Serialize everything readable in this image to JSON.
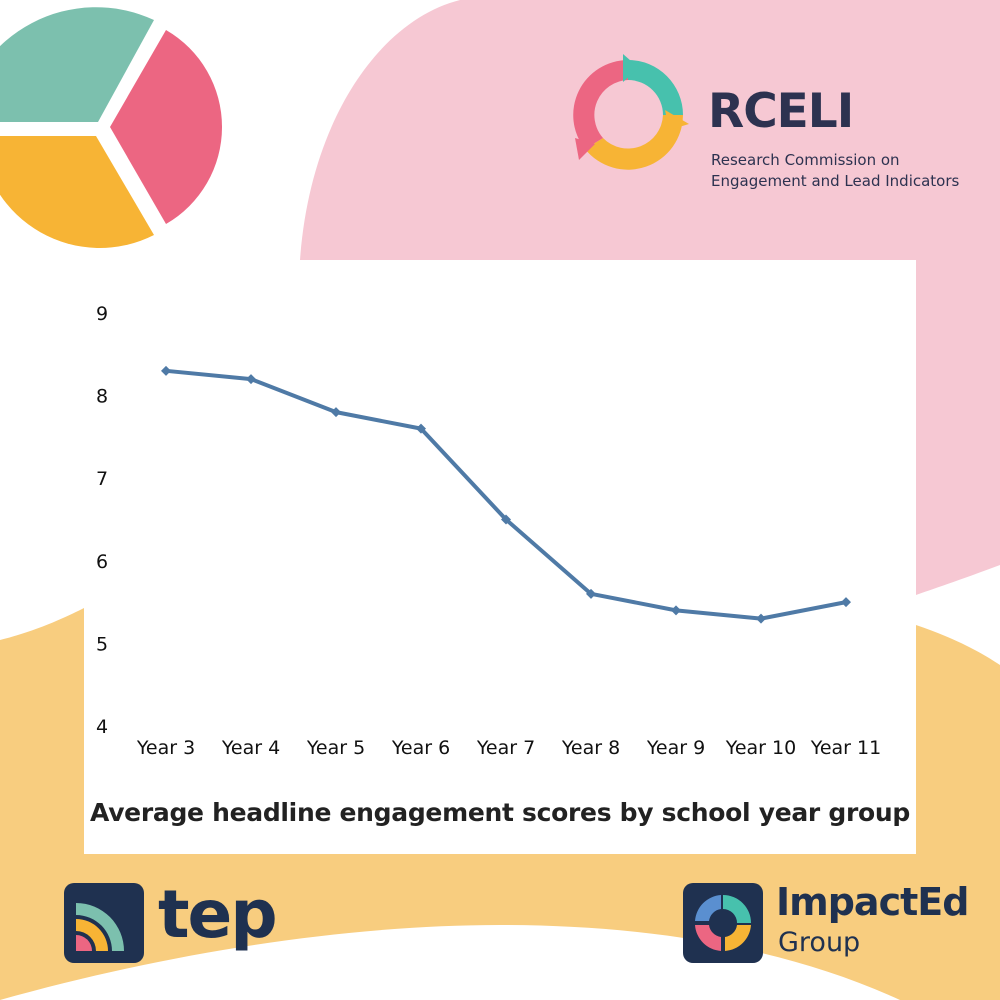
{
  "colors": {
    "pink_bg": "#f6c8d3",
    "yellow_bg": "#f8cd7f",
    "line": "#4f7aa6",
    "pie_teal": "#7cc0ae",
    "pie_pink": "#ec6682",
    "pie_yellow": "#f7b435"
  },
  "rceli": {
    "name": "RCELI",
    "full_name_line1": "Research Commission on",
    "full_name_line2": "Engagement and Lead Indicators"
  },
  "tep": {
    "name": "tep"
  },
  "impacted": {
    "name": "ImpactEd",
    "sub": "Group"
  },
  "chart_data": {
    "type": "line",
    "title": "Average headline engagement scores by school year group",
    "categories": [
      "Year 3",
      "Year 4",
      "Year 5",
      "Year 6",
      "Year 7",
      "Year 8",
      "Year 9",
      "Year 10",
      "Year 11"
    ],
    "series": [
      {
        "name": "Average headline engagement score",
        "values": [
          8.3,
          8.2,
          7.8,
          7.6,
          6.5,
          5.6,
          5.4,
          5.3,
          5.5
        ]
      }
    ],
    "ylim": [
      4,
      9
    ],
    "yticks": [
      9,
      8,
      7,
      6,
      5,
      4
    ],
    "xlabel": "",
    "ylabel": "",
    "grid": false
  }
}
